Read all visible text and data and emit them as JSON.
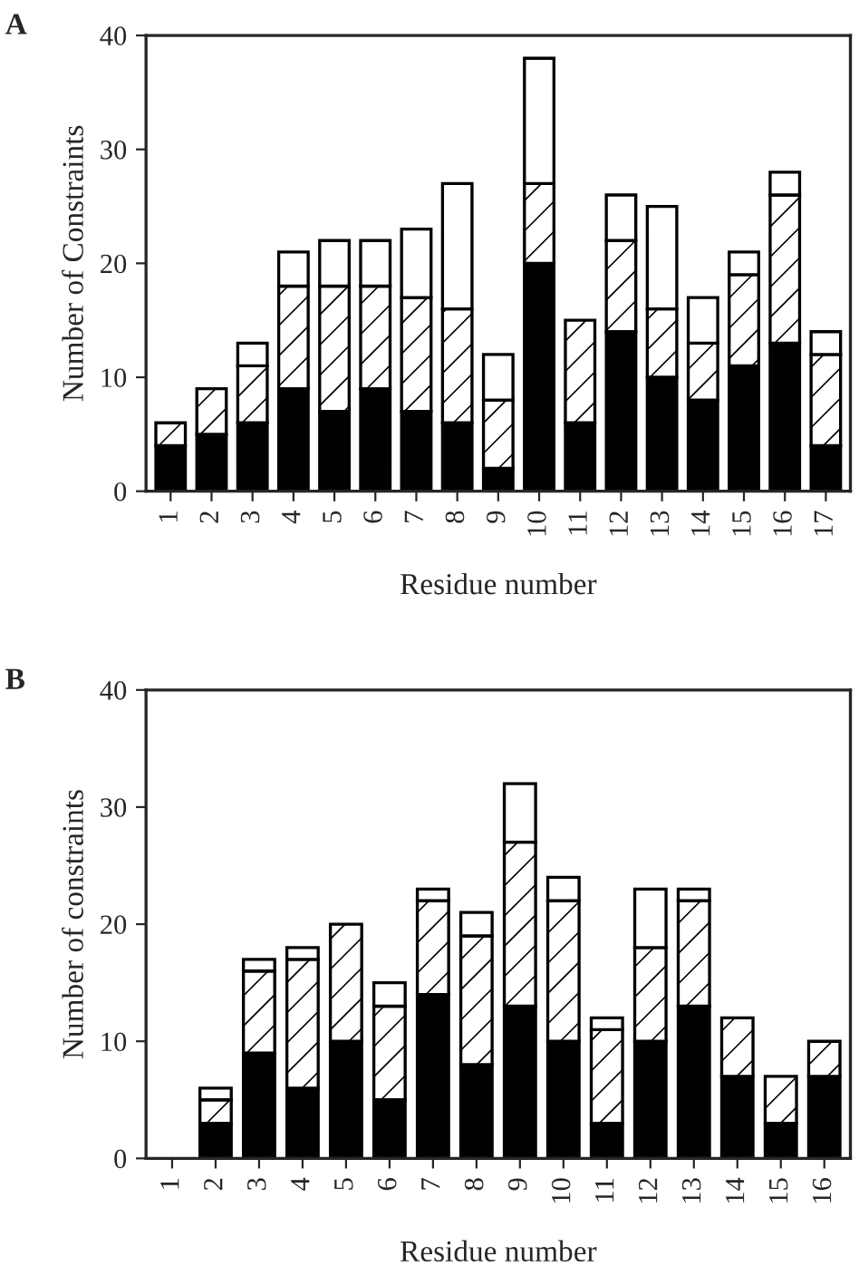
{
  "chart_data": [
    {
      "type": "bar",
      "title": "A",
      "stacked": true,
      "xlabel": "Residue number",
      "ylabel": "Number of Constraints",
      "categories": [
        "1",
        "2",
        "3",
        "4",
        "5",
        "6",
        "7",
        "8",
        "9",
        "10",
        "11",
        "12",
        "13",
        "14",
        "15",
        "16",
        "17"
      ],
      "ylim": [
        0,
        40
      ],
      "yticks": [
        0,
        10,
        20,
        30,
        40
      ],
      "grid": false,
      "legend": false,
      "series": [
        {
          "color": "#000000",
          "values": [
            4,
            5,
            6,
            9,
            7,
            9,
            7,
            6,
            2,
            20,
            6,
            14,
            10,
            8,
            11,
            13,
            4
          ]
        },
        {
          "color": "#000000",
          "values": [
            2,
            4,
            5,
            9,
            11,
            9,
            10,
            10,
            6,
            7,
            9,
            8,
            6,
            5,
            8,
            13,
            8
          ]
        },
        {
          "color": "#ffffff",
          "values": [
            0,
            0,
            2,
            3,
            4,
            4,
            6,
            11,
            4,
            11,
            0,
            4,
            9,
            4,
            2,
            2,
            2
          ]
        }
      ]
    },
    {
      "type": "bar",
      "title": "B",
      "stacked": true,
      "xlabel": "Residue number",
      "ylabel": "Number of constraints",
      "categories": [
        "1",
        "2",
        "3",
        "4",
        "5",
        "6",
        "7",
        "8",
        "9",
        "10",
        "11",
        "12",
        "13",
        "14",
        "15",
        "16"
      ],
      "ylim": [
        0,
        40
      ],
      "yticks": [
        0,
        10,
        20,
        30,
        40
      ],
      "grid": false,
      "legend": false,
      "series": [
        {
          "color": "#000000",
          "values": [
            0,
            3,
            9,
            6,
            10,
            5,
            14,
            8,
            13,
            10,
            3,
            10,
            13,
            7,
            3,
            7
          ]
        },
        {
          "color": "#000000",
          "values": [
            0,
            2,
            7,
            11,
            10,
            8,
            8,
            11,
            14,
            12,
            8,
            8,
            9,
            5,
            4,
            3
          ]
        },
        {
          "color": "#ffffff",
          "values": [
            0,
            1,
            1,
            1,
            0,
            2,
            1,
            2,
            5,
            2,
            1,
            5,
            1,
            0,
            0,
            0
          ]
        }
      ]
    }
  ]
}
